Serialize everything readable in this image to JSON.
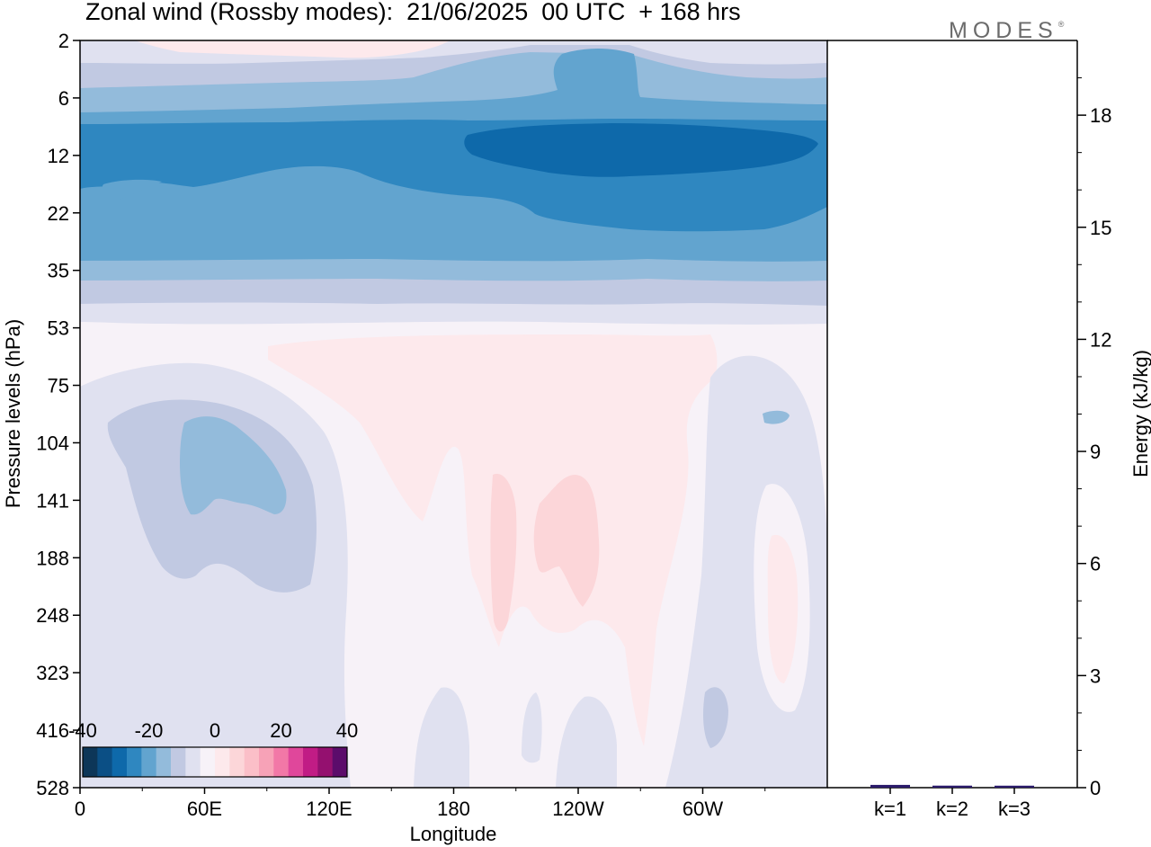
{
  "title": "Zonal wind (Rossby modes):  21/06/2025  00 UTC  + 168 hrs",
  "brand": "MODES",
  "brand_mark": "®",
  "colors": {
    "palette": [
      "#0d3658",
      "#0b4f85",
      "#0e69aa",
      "#2f87c0",
      "#62a4cf",
      "#93bbdb",
      "#c1c9e2",
      "#e0e1f0",
      "#f7f2f8",
      "#fde9ec",
      "#fcd6d9",
      "#fbbfc8",
      "#f7a2b7",
      "#f278a7",
      "#e0479b",
      "#c11c85",
      "#94106f",
      "#5b0c6b"
    ],
    "bar": "#2b1b6b"
  },
  "chart_data": [
    {
      "type": "heatmap",
      "title": "Zonal wind (Rossby modes):  21/06/2025  00 UTC  + 168 hrs",
      "xlabel": "Longitude",
      "ylabel": "Pressure levels (hPa)",
      "x_ticks": [
        "0",
        "60E",
        "120E",
        "180",
        "120W",
        "60W"
      ],
      "y_ticks": [
        "2",
        "6",
        "12",
        "22",
        "35",
        "53",
        "75",
        "104",
        "141",
        "188",
        "248",
        "323",
        "416",
        "528"
      ],
      "y_scale": "log-like, pressure increasing downward",
      "colorbar": {
        "ticks": [
          "-40",
          "-20",
          "0",
          "20",
          "40"
        ],
        "range": [
          -40,
          40
        ]
      },
      "features": [
        {
          "region": "upper stratosphere (2-6 hPa)",
          "value": -10
        },
        {
          "region": "jet core 8-30 hPa",
          "value": -30
        },
        {
          "region": "jet maximum near 12 hPa, 160W-30W",
          "value": -35
        },
        {
          "region": "35-53 hPa band",
          "value": -8
        },
        {
          "region": "troposphere 60E center (104-141 hPa)",
          "value": -15
        },
        {
          "region": "troposphere 180-90W (75-300 hPa)",
          "value": 5
        },
        {
          "region": "near 140W, 140-200 hPa",
          "value": 10
        }
      ]
    },
    {
      "type": "bar",
      "ylabel": "Energy (kJ/kg)",
      "categories": [
        "k=1",
        "k=2",
        "k=3"
      ],
      "values": [
        0.05,
        0.03,
        0.02
      ],
      "y_ticks": [
        "0",
        "3",
        "6",
        "9",
        "12",
        "15",
        "18"
      ],
      "ylim": [
        0,
        20
      ]
    }
  ]
}
